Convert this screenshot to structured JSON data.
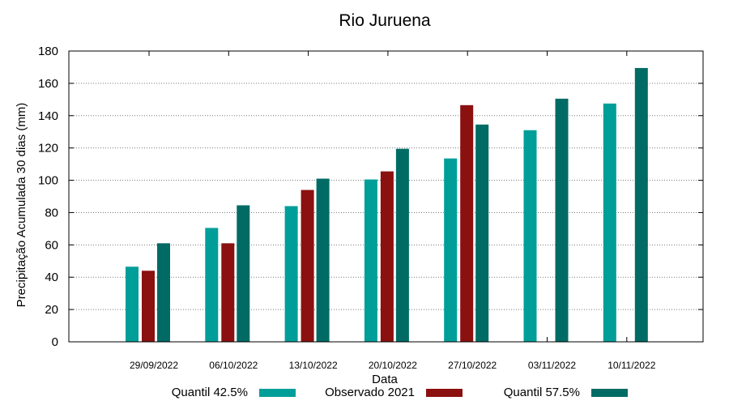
{
  "chart_data": {
    "type": "bar",
    "title": "Rio Juruena",
    "xlabel": "Data",
    "ylabel": "Precipitação Acumulada 30 dias (mm)",
    "ylim": [
      0,
      180
    ],
    "yticks": [
      "0",
      "20",
      "40",
      "60",
      "80",
      "100",
      "120",
      "140",
      "160",
      "180"
    ],
    "grid": true,
    "legend_position": "bottom",
    "categories": [
      "29/09/2022",
      "06/10/2022",
      "13/10/2022",
      "20/10/2022",
      "27/10/2022",
      "03/11/2022",
      "10/11/2022"
    ],
    "series": [
      {
        "name": "Quantil 42.5%",
        "color": "#009e99",
        "values": [
          46.5,
          70.5,
          84,
          100.5,
          113.5,
          131,
          147.5
        ]
      },
      {
        "name": "Observado 2021",
        "color": "#8b1010",
        "values": [
          44,
          61,
          94,
          105.5,
          146.5,
          null,
          null
        ]
      },
      {
        "name": "Quantil 57.5%",
        "color": "#006b65",
        "values": [
          61,
          84.5,
          101,
          119.5,
          134.5,
          150.5,
          169.5
        ]
      }
    ]
  }
}
